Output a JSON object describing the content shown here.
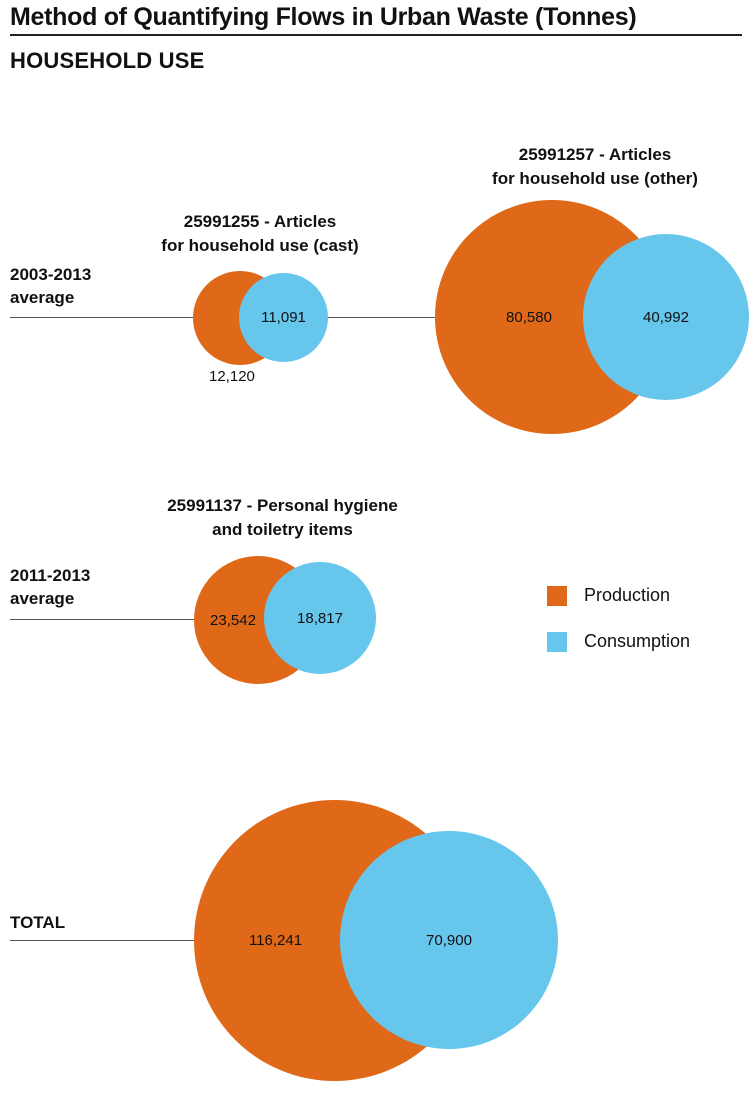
{
  "title": "Method of Quantifying Flows in Urban Waste (Tonnes)",
  "section": "HOUSEHOLD USE",
  "colors": {
    "production": "#e06919",
    "consumption": "#67c6ec"
  },
  "legend": {
    "production": "Production",
    "consumption": "Consumption"
  },
  "chart_data": {
    "type": "bubble",
    "series": [
      {
        "name": "Production"
      },
      {
        "name": "Consumption"
      }
    ],
    "groups": [
      {
        "period_line1": "2003-2013",
        "period_line2": "average",
        "items": [
          {
            "code_line1": "25991255 - Articles",
            "code_line2": "for household use (cast)",
            "production": 12120,
            "production_label": "12,120",
            "consumption": 11091,
            "consumption_label": "11,091"
          },
          {
            "code_line1": "25991257 - Articles",
            "code_line2": "for household use (other)",
            "production": 80580,
            "production_label": "80,580",
            "consumption": 40992,
            "consumption_label": "40,992"
          }
        ]
      },
      {
        "period_line1": "2011-2013",
        "period_line2": "average",
        "items": [
          {
            "code_line1": "25991137 - Personal hygiene",
            "code_line2": "and toiletry items",
            "production": 23542,
            "production_label": "23,542",
            "consumption": 18817,
            "consumption_label": "18,817"
          }
        ]
      },
      {
        "period_line1": "TOTAL",
        "items": [
          {
            "production": 116241,
            "production_label": "116,241",
            "consumption": 70900,
            "consumption_label": "70,900"
          }
        ]
      }
    ]
  }
}
